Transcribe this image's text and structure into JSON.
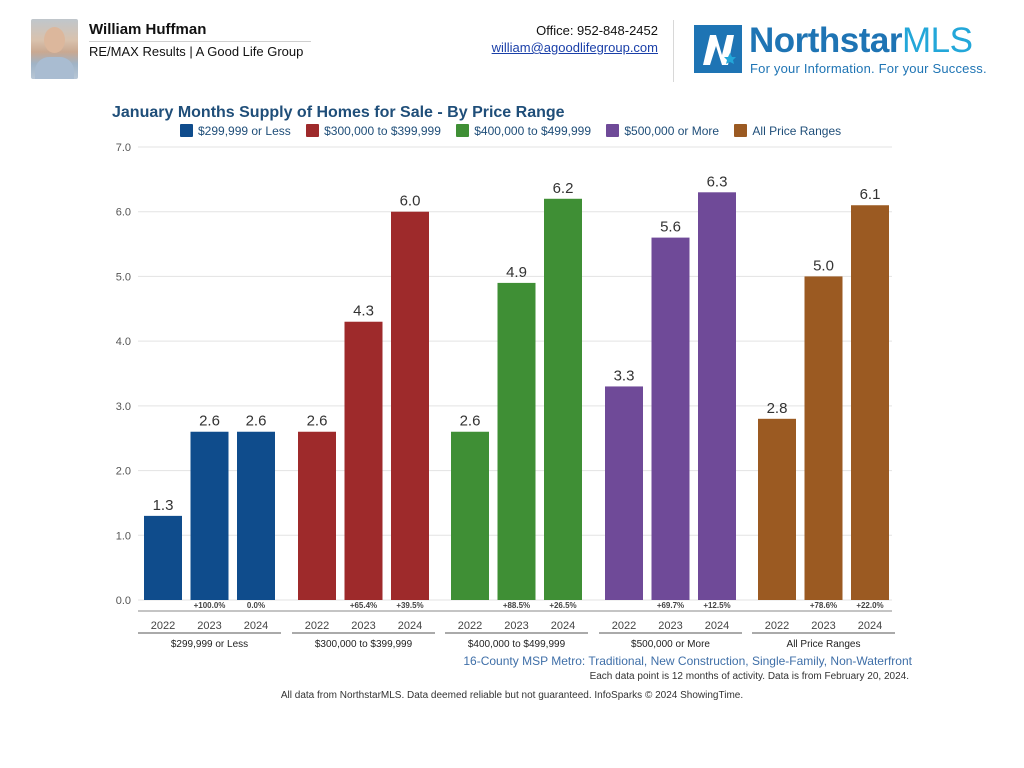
{
  "agent": {
    "name": "William Huffman",
    "company": "RE/MAX Results | A Good Life Group",
    "office": "Office: 952-848-2452",
    "email": "william@agoodlifegroup.com"
  },
  "logo": {
    "brand": "Northstar",
    "brand_suffix": "MLS",
    "tagline": "For your Information. For your Success."
  },
  "chart_data": {
    "type": "bar",
    "title": "January Months Supply of Homes for Sale - By Price Range",
    "xlabel": "",
    "ylabel": "",
    "ylim": [
      0,
      7
    ],
    "yticks": [
      "0.0",
      "1.0",
      "2.0",
      "3.0",
      "4.0",
      "5.0",
      "6.0",
      "7.0"
    ],
    "grid": true,
    "legend_position": "top",
    "series": [
      {
        "name": "$299,999 or Less",
        "color": "#0f4c8c",
        "years": [
          "2022",
          "2023",
          "2024"
        ],
        "values": [
          1.3,
          2.6,
          2.6
        ],
        "labels": [
          "1.3",
          "2.6",
          "2.6"
        ],
        "changes": [
          "",
          "+100.0%",
          "0.0%"
        ]
      },
      {
        "name": "$300,000 to $399,999",
        "color": "#9e2a2b",
        "years": [
          "2022",
          "2023",
          "2024"
        ],
        "values": [
          2.6,
          4.3,
          6.0
        ],
        "labels": [
          "2.6",
          "4.3",
          "6.0"
        ],
        "changes": [
          "",
          "+65.4%",
          "+39.5%"
        ]
      },
      {
        "name": "$400,000 to $499,999",
        "color": "#3f8f35",
        "years": [
          "2022",
          "2023",
          "2024"
        ],
        "values": [
          2.6,
          4.9,
          6.2
        ],
        "labels": [
          "2.6",
          "4.9",
          "6.2"
        ],
        "changes": [
          "",
          "+88.5%",
          "+26.5%"
        ]
      },
      {
        "name": "$500,000 or More",
        "color": "#6f4a98",
        "years": [
          "2022",
          "2023",
          "2024"
        ],
        "values": [
          3.3,
          5.6,
          6.3
        ],
        "labels": [
          "3.3",
          "5.6",
          "6.3"
        ],
        "changes": [
          "",
          "+69.7%",
          "+12.5%"
        ]
      },
      {
        "name": "All Price Ranges",
        "color": "#9b5a22",
        "years": [
          "2022",
          "2023",
          "2024"
        ],
        "values": [
          2.8,
          5.0,
          6.1
        ],
        "labels": [
          "2.8",
          "5.0",
          "6.1"
        ],
        "changes": [
          "",
          "+78.6%",
          "+22.0%"
        ]
      }
    ]
  },
  "notes": {
    "region": "16-County MSP Metro: Traditional, New Construction, Single-Family, Non-Waterfront",
    "data_note": "Each data point is 12 months of activity. Data is from February 20, 2024.",
    "footer": "All data from NorthstarMLS. Data deemed reliable but not guaranteed. InfoSparks © 2024 ShowingTime."
  }
}
